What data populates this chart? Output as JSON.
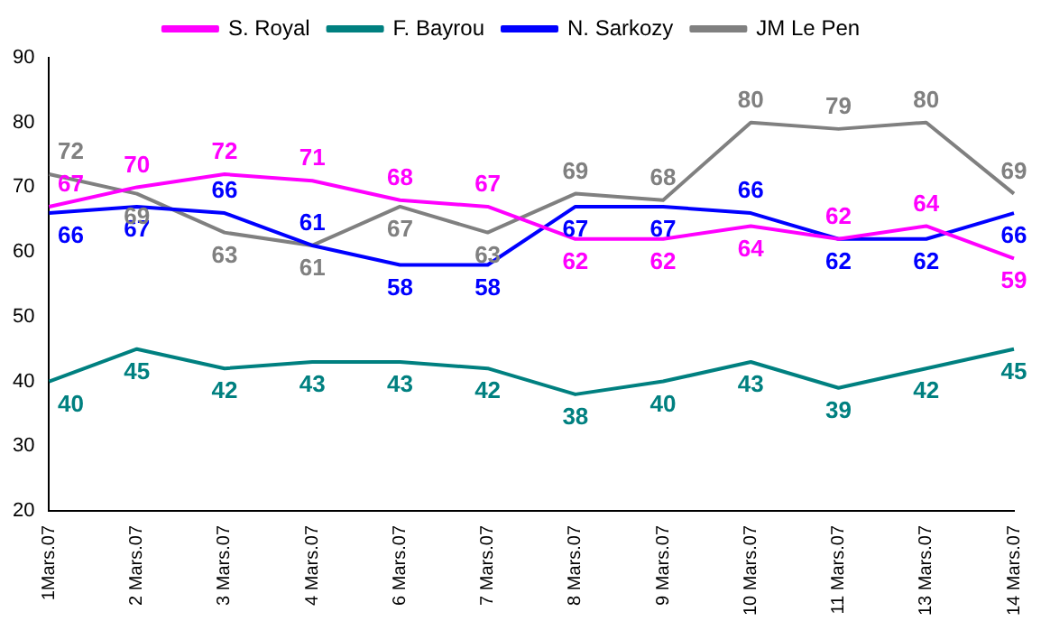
{
  "chart_data": {
    "type": "line",
    "categories": [
      "1Mars.07",
      "2 Mars.07",
      "3 Mars.07",
      "4 Mars.07",
      "6 Mars.07",
      "7 Mars.07",
      "8 Mars.07",
      "9 Mars.07",
      "10 Mars.07",
      "11 Mars.07",
      "13 Mars.07",
      "14 Mars.07"
    ],
    "series": [
      {
        "name": "S. Royal",
        "color": "#ff00ff",
        "values": [
          67,
          70,
          72,
          71,
          68,
          67,
          62,
          62,
          64,
          62,
          64,
          59
        ]
      },
      {
        "name": "F. Bayrou",
        "color": "#008080",
        "values": [
          40,
          45,
          42,
          43,
          43,
          42,
          38,
          40,
          43,
          39,
          42,
          45
        ]
      },
      {
        "name": "N. Sarkozy",
        "color": "#0000ff",
        "values": [
          66,
          67,
          66,
          61,
          58,
          58,
          67,
          67,
          66,
          62,
          62,
          66
        ]
      },
      {
        "name": "JM Le Pen",
        "color": "#808080",
        "values": [
          72,
          69,
          63,
          61,
          67,
          63,
          69,
          68,
          80,
          79,
          80,
          69
        ]
      }
    ],
    "ylim": [
      20,
      90
    ],
    "yticks": [
      20,
      30,
      40,
      50,
      60,
      70,
      80,
      90
    ],
    "grid": false,
    "legend": "top",
    "marker": "none",
    "line_style": "solid",
    "data_labels": true
  }
}
